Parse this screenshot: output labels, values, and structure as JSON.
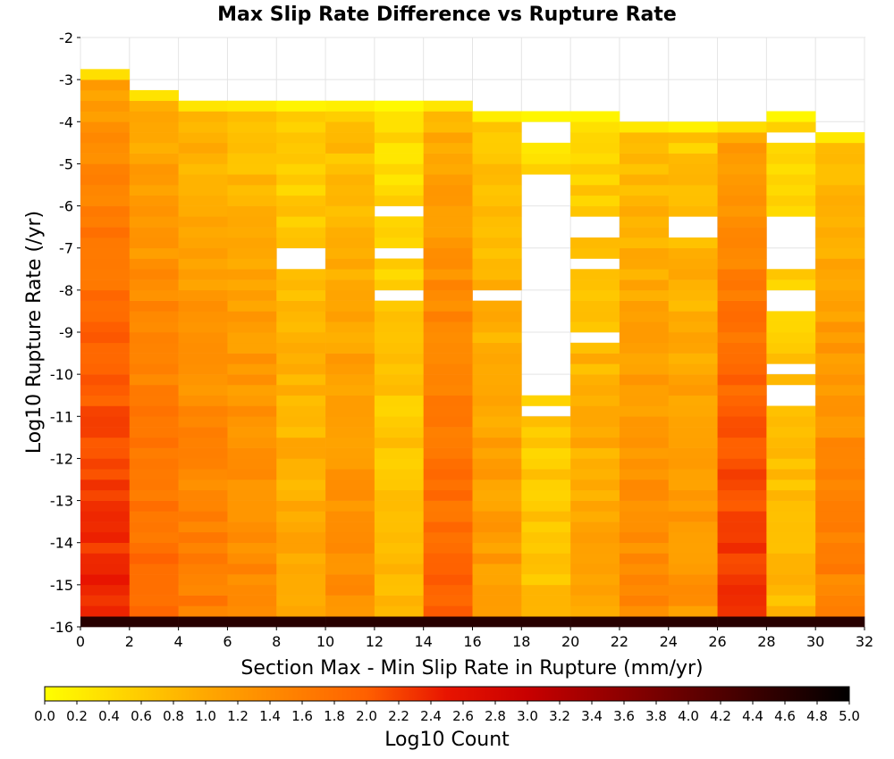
{
  "chart_data": {
    "type": "heatmap",
    "title": "Max Slip Rate Difference vs Rupture Rate",
    "xlabel": "Section Max - Min Slip Rate in Rupture (mm/yr)",
    "ylabel": "Log10 Rupture Rate (/yr)",
    "xlim": [
      0,
      32
    ],
    "ylim": [
      -16,
      -2
    ],
    "x_ticks": [
      "0",
      "2",
      "4",
      "6",
      "8",
      "10",
      "12",
      "14",
      "16",
      "18",
      "20",
      "22",
      "24",
      "26",
      "28",
      "30",
      "32"
    ],
    "y_ticks": [
      "-2",
      "-3",
      "-4",
      "-5",
      "-6",
      "-7",
      "-8",
      "-9",
      "-10",
      "-11",
      "-12",
      "-13",
      "-14",
      "-15",
      "-16"
    ],
    "x_bin_width": 2,
    "y_bin_height": 0.25,
    "grid": true,
    "colorbar": {
      "label": "Log10 Count",
      "min": 0.0,
      "max": 5.0,
      "ticks": [
        "0.0",
        "0.2",
        "0.4",
        "0.6",
        "0.8",
        "1.0",
        "1.2",
        "1.4",
        "1.6",
        "1.8",
        "2.0",
        "2.2",
        "2.4",
        "2.6",
        "2.8",
        "3.0",
        "3.2",
        "3.4",
        "3.6",
        "3.8",
        "4.0",
        "4.2",
        "4.4",
        "4.6",
        "4.8",
        "5.0"
      ],
      "colors": [
        "#ffff00",
        "#ffa800",
        "#ff6000",
        "#e81400",
        "#c80000",
        "#000000"
      ],
      "stops": [
        0.0,
        1.0,
        2.0,
        2.5,
        3.0,
        5.0
      ]
    },
    "columns": [
      {
        "x": 1,
        "top": -2.75,
        "base": 2.35,
        "empty": []
      },
      {
        "x": 3,
        "top": -3.25,
        "base": 1.85,
        "empty": []
      },
      {
        "x": 5,
        "top": -3.5,
        "base": 1.6,
        "empty": []
      },
      {
        "x": 7,
        "top": -3.5,
        "base": 1.45,
        "empty": []
      },
      {
        "x": 9,
        "top": -3.5,
        "base": 1.0,
        "empty": [
          [
            -7.5,
            -7.0
          ]
        ]
      },
      {
        "x": 11,
        "top": -3.5,
        "base": 1.35,
        "empty": []
      },
      {
        "x": 13,
        "top": -3.5,
        "base": 0.75,
        "empty": [
          [
            -6.25,
            -6.0
          ],
          [
            -7.25,
            -7.0
          ],
          [
            -8.25,
            -8.0
          ]
        ]
      },
      {
        "x": 15,
        "top": -3.5,
        "base": 1.9,
        "empty": []
      },
      {
        "x": 17,
        "top": -3.75,
        "base": 1.2,
        "empty": [
          [
            -8.25,
            -8.0
          ]
        ]
      },
      {
        "x": 19,
        "top": -3.75,
        "base": 0.7,
        "empty": [
          [
            -4.5,
            -4.0
          ],
          [
            -10.5,
            -5.25
          ],
          [
            -11.0,
            -10.75
          ]
        ]
      },
      {
        "x": 21,
        "top": -3.75,
        "base": 1.05,
        "empty": [
          [
            -6.75,
            -6.25
          ],
          [
            -7.5,
            -7.25
          ],
          [
            -9.25,
            -9.0
          ]
        ]
      },
      {
        "x": 23,
        "top": -4.0,
        "base": 1.4,
        "empty": []
      },
      {
        "x": 25,
        "top": -4.0,
        "base": 1.25,
        "empty": [
          [
            -6.75,
            -6.25
          ]
        ]
      },
      {
        "x": 27,
        "top": -4.0,
        "base": 2.25,
        "empty": []
      },
      {
        "x": 29,
        "top": -3.75,
        "base": 0.8,
        "empty": [
          [
            -4.5,
            -4.25
          ],
          [
            -7.5,
            -6.25
          ],
          [
            -8.5,
            -8.0
          ],
          [
            -10.0,
            -9.75
          ],
          [
            -10.5,
            -10.25
          ],
          [
            -10.75,
            -10.5
          ]
        ]
      },
      {
        "x": 31,
        "top": -4.25,
        "base": 1.55,
        "empty": []
      }
    ],
    "note_cells": "Each column is divided into bins of height 0.25 in log10 rate; bottom row at -16 is the darkest band"
  }
}
